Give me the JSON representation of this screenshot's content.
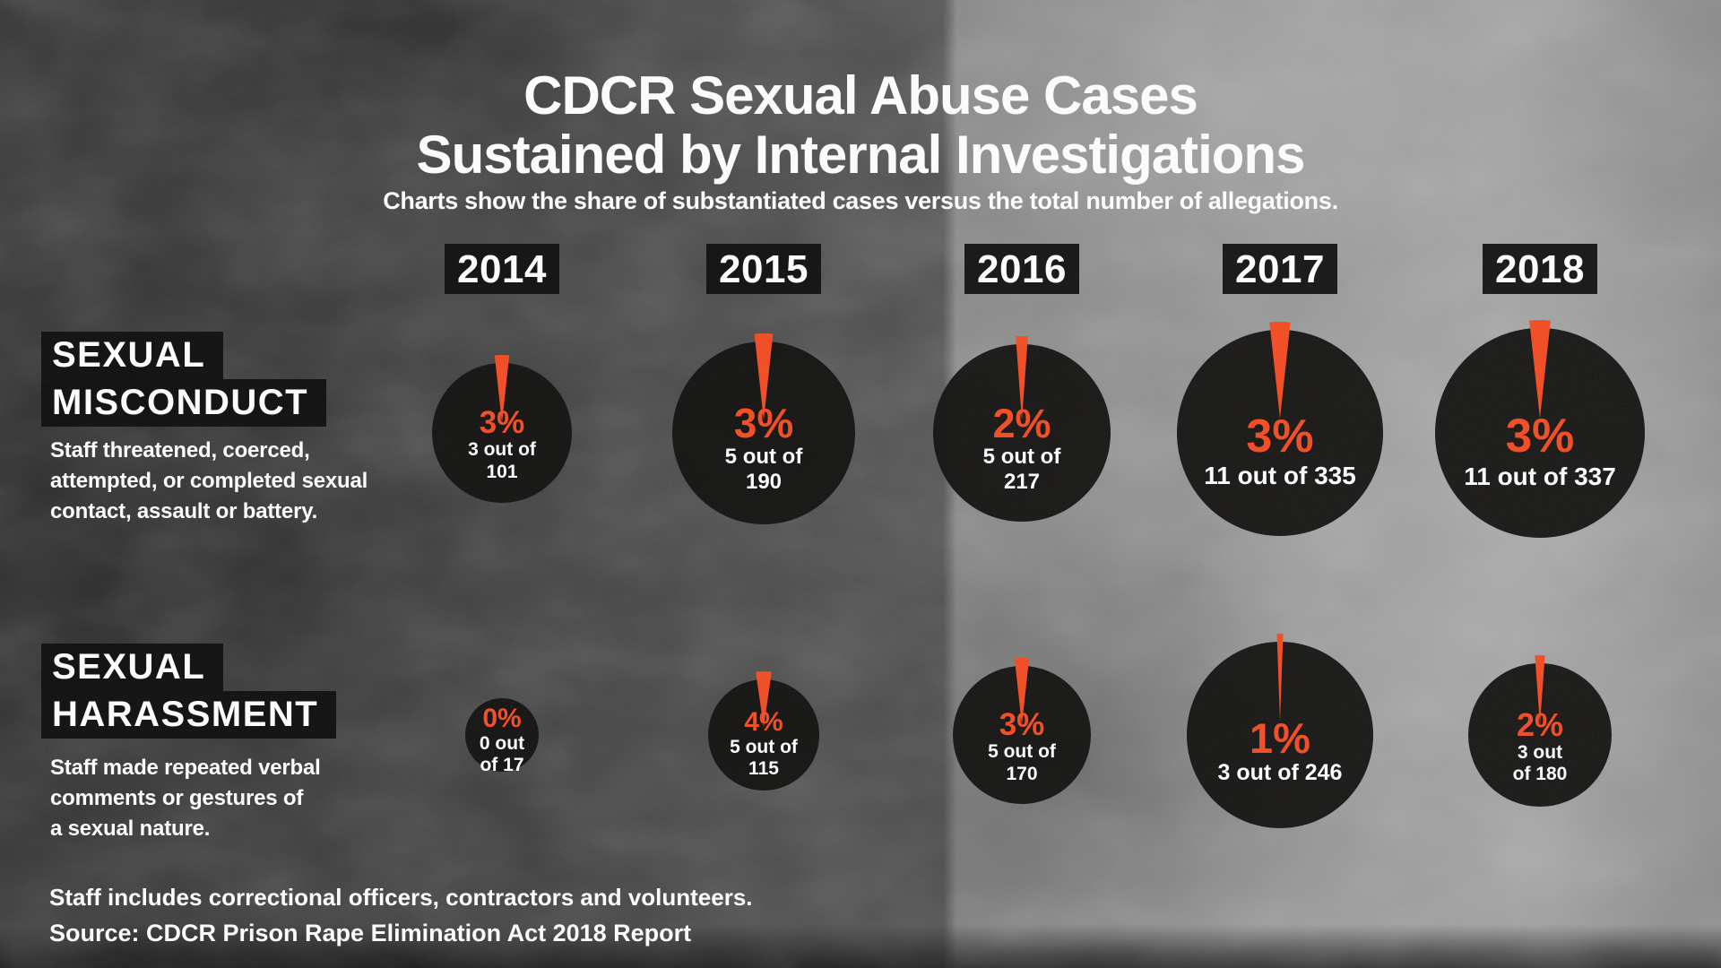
{
  "header": {
    "title_line1": "CDCR Sexual Abuse Cases",
    "title_line2": "Sustained by Internal Investigations",
    "subtitle": "Charts show the share of substantiated cases versus the total number of allegations."
  },
  "years": [
    "2014",
    "2015",
    "2016",
    "2017",
    "2018"
  ],
  "sections": [
    {
      "label_line1": "SEXUAL",
      "label_line2": "MISCONDUCT",
      "description": "Staff threatened, coerced,\nattempted, or completed sexual\ncontact, assault or battery."
    },
    {
      "label_line1": "SEXUAL",
      "label_line2": "HARASSMENT",
      "description": "Staff made repeated verbal\ncomments or gestures of\na sexual nature."
    }
  ],
  "footer": {
    "note": "Staff includes correctional officers, contractors and volunteers.",
    "source": "Source: CDCR Prison Rape Elimination Act 2018 Report"
  },
  "colors": {
    "accent": "#F5491F",
    "circle_fill": "#0D0C0A",
    "label_box": "#0B0B0B",
    "text": "#FFFFFF"
  },
  "chart_data": {
    "type": "pie",
    "title": "CDCR Sexual Abuse Cases Sustained by Internal Investigations",
    "subtitle": "Charts show the share of substantiated cases versus the total number of allegations.",
    "legend_note": "Each circle = total allegations for that year; orange slice = share of substantiated cases; circle size scales with total allegations",
    "years": [
      "2014",
      "2015",
      "2016",
      "2017",
      "2018"
    ],
    "series": [
      {
        "name": "Sexual Misconduct",
        "cells": [
          {
            "year": "2014",
            "percent": 3,
            "percent_label": "3%",
            "substantiated": 3,
            "total": 101,
            "count_lines": [
              "3 out of",
              "101"
            ],
            "radius": 78
          },
          {
            "year": "2015",
            "percent": 3,
            "percent_label": "3%",
            "substantiated": 5,
            "total": 190,
            "count_lines": [
              "5 out of",
              "190"
            ],
            "radius": 102
          },
          {
            "year": "2016",
            "percent": 2,
            "percent_label": "2%",
            "substantiated": 5,
            "total": 217,
            "count_lines": [
              "5 out of",
              "217"
            ],
            "radius": 99
          },
          {
            "year": "2017",
            "percent": 3,
            "percent_label": "3%",
            "substantiated": 11,
            "total": 335,
            "count_lines": [
              "11 out of 335"
            ],
            "radius": 115
          },
          {
            "year": "2018",
            "percent": 3,
            "percent_label": "3%",
            "substantiated": 11,
            "total": 337,
            "count_lines": [
              "11 out of 337"
            ],
            "radius": 117
          }
        ]
      },
      {
        "name": "Sexual Harassment",
        "cells": [
          {
            "year": "2014",
            "percent": 0,
            "percent_label": "0%",
            "substantiated": 0,
            "total": 17,
            "count_lines": [
              "0 out",
              "of 17"
            ],
            "radius": 41
          },
          {
            "year": "2015",
            "percent": 4,
            "percent_label": "4%",
            "substantiated": 5,
            "total": 115,
            "count_lines": [
              "5 out of",
              "115"
            ],
            "radius": 62
          },
          {
            "year": "2016",
            "percent": 3,
            "percent_label": "3%",
            "substantiated": 5,
            "total": 170,
            "count_lines": [
              "5 out of",
              "170"
            ],
            "radius": 77
          },
          {
            "year": "2017",
            "percent": 1,
            "percent_label": "1%",
            "substantiated": 3,
            "total": 246,
            "count_lines": [
              "3 out of 246"
            ],
            "radius": 104
          },
          {
            "year": "2018",
            "percent": 2,
            "percent_label": "2%",
            "substantiated": 3,
            "total": 180,
            "count_lines": [
              "3 out",
              "of 180"
            ],
            "radius": 80
          }
        ]
      }
    ]
  }
}
